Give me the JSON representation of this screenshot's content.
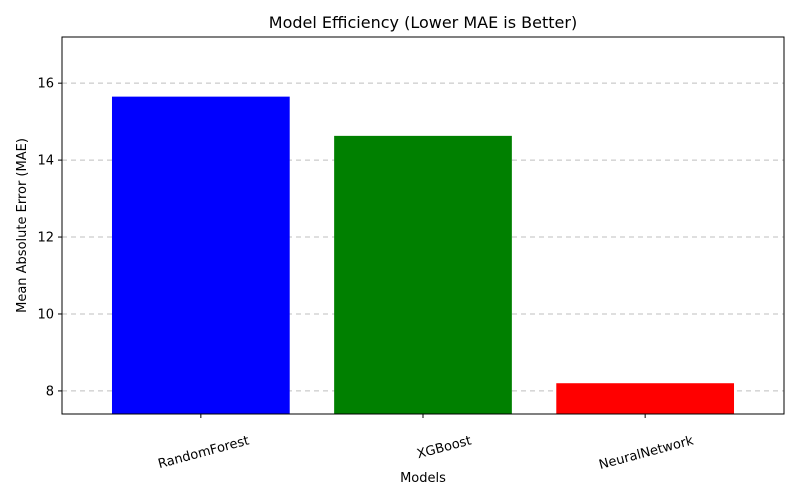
{
  "chart_data": {
    "type": "bar",
    "title": "Model Efficiency (Lower MAE is Better)",
    "xlabel": "Models",
    "ylabel": "Mean Absolute Error (MAE)",
    "categories": [
      "RandomForest",
      "XGBoost",
      "NeuralNetwork"
    ],
    "values": [
      15.65,
      14.63,
      8.2
    ],
    "colors": [
      "#0000ff",
      "#008000",
      "#ff0000"
    ],
    "ylim": [
      7.4,
      17.2
    ],
    "yticks": [
      8,
      10,
      12,
      14,
      16
    ],
    "ytick_labels": [
      "8",
      "10",
      "12",
      "14",
      "16"
    ],
    "grid": "y-dashed",
    "xtick_rotation_deg": -15
  }
}
